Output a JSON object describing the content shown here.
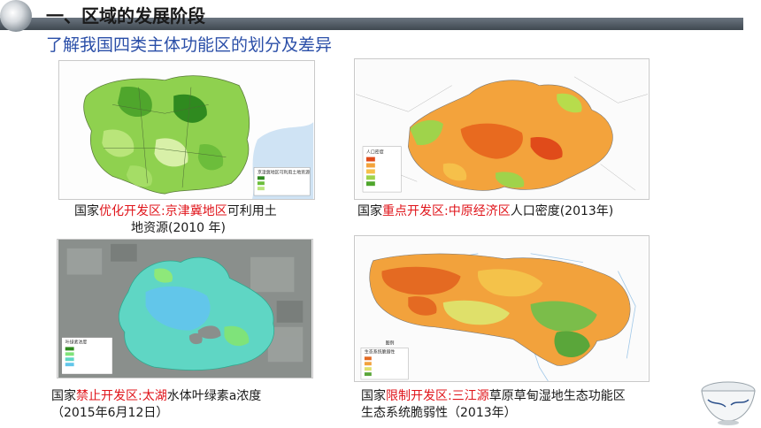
{
  "header": {
    "title": "一、区域的发展阶段",
    "subtitle": "了解我国四类主体功能区的划分及差异"
  },
  "captions": {
    "c1": {
      "prefix": "国家",
      "type": "优化开发区",
      "sep": ":",
      "region": "京津冀地区",
      "rest": "可利用土",
      "line2": "地资源(2010  年)"
    },
    "c2": {
      "prefix": "国家",
      "type": "重点开发区",
      "sep": ":",
      "region": "中原经济区",
      "rest": "人口密度(2013年)"
    },
    "c3": {
      "prefix": "国家",
      "type": "禁止开发区",
      "sep": ":",
      "region": "太湖",
      "rest": "水体叶绿素a浓度",
      "line2": "（2015年6月12日）"
    },
    "c4": {
      "prefix": "国家",
      "type": "限制开发区",
      "sep": ":",
      "region": "三江源",
      "rest": "草原草甸湿地生态功能区",
      "line2": "生态系统脆弱性（2013年）"
    }
  },
  "maps": {
    "m1": {
      "legend_title": "京津冀地区可利用土地资源"
    },
    "m2": {
      "legend_title": "人口密度"
    },
    "m3": {
      "legend_title": "叶绿素浓度"
    },
    "m4": {
      "legend_title": "生态系统脆弱性",
      "legend_heading": "图例"
    }
  },
  "colors": {
    "accent_red": "#e0151b",
    "subtitle_blue": "#2b4fa8"
  }
}
